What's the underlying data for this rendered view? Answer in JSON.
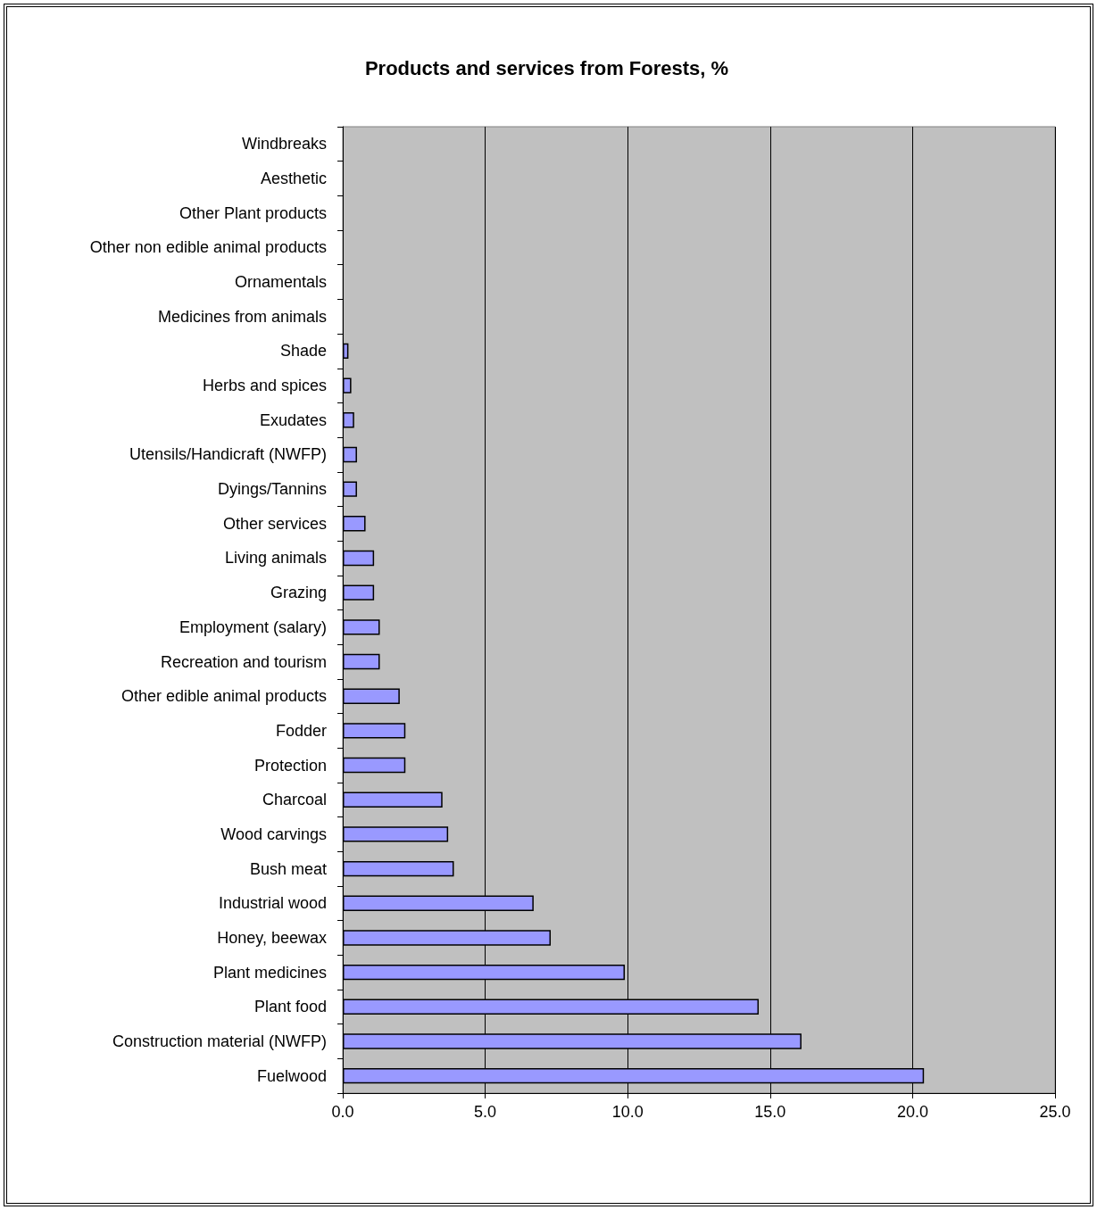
{
  "chart_data": {
    "type": "bar",
    "orientation": "horizontal",
    "title": "Products and services from Forests, %",
    "categories": [
      "Windbreaks",
      "Aesthetic",
      "Other Plant products",
      "Other non edible animal products",
      "Ornamentals",
      "Medicines from animals",
      "Shade",
      "Herbs and spices",
      "Exudates",
      "Utensils/Handicraft (NWFP)",
      "Dyings/Tannins",
      "Other services",
      "Living animals",
      "Grazing",
      "Employment (salary)",
      "Recreation and tourism",
      "Other edible animal products",
      "Fodder",
      "Protection",
      "Charcoal",
      "Wood carvings",
      "Bush meat",
      "Industrial wood",
      "Honey, beewax",
      "Plant medicines",
      "Plant food",
      "Construction material (NWFP)",
      "Fuelwood"
    ],
    "values": [
      0,
      0,
      0,
      0,
      0,
      0,
      0.2,
      0.3,
      0.4,
      0.5,
      0.5,
      0.8,
      1.1,
      1.1,
      1.3,
      1.3,
      2.0,
      2.2,
      2.2,
      3.5,
      3.7,
      3.9,
      6.7,
      7.3,
      9.9,
      14.6,
      16.1,
      20.4
    ],
    "color": "#9999ff",
    "xlim": [
      0,
      25
    ],
    "xticks": [
      {
        "value": 0,
        "label": "0.0"
      },
      {
        "value": 5,
        "label": "5.0"
      },
      {
        "value": 10,
        "label": "10.0"
      },
      {
        "value": 15,
        "label": "15.0"
      },
      {
        "value": 20,
        "label": "20.0"
      },
      {
        "value": 25,
        "label": "25.0"
      }
    ],
    "grid": "x"
  }
}
